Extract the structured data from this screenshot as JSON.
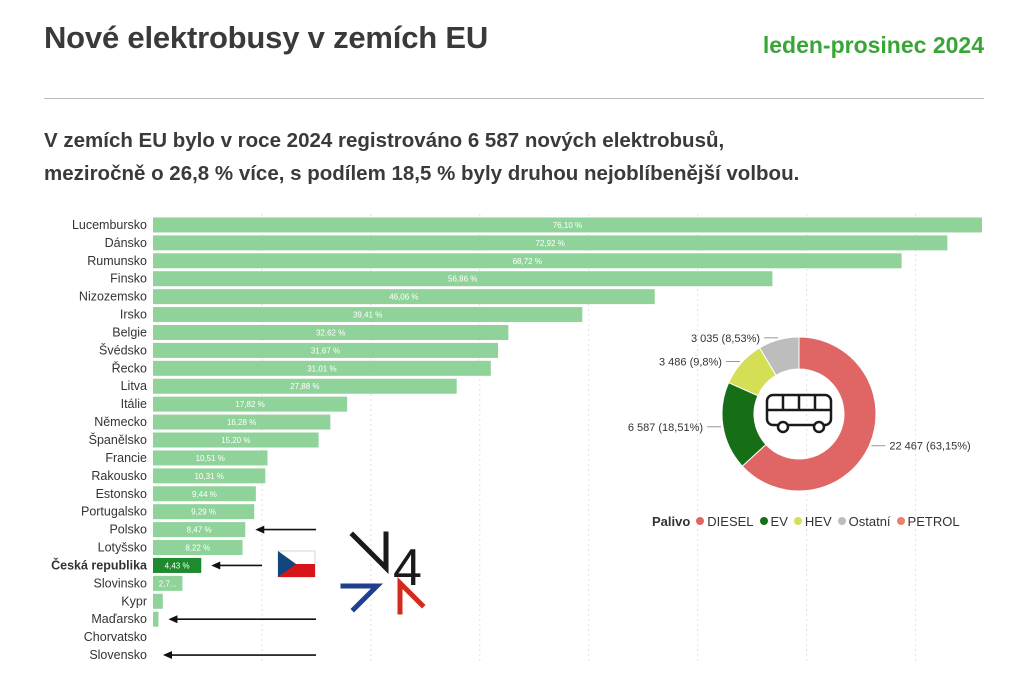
{
  "header": {
    "title": "Nové elektrobusy v zemích EU",
    "period": "leden-prosinec 2024",
    "subtitle_line1": "V zemích EU bylo v roce 2024 registrováno 6 587 nových elektrobusů,",
    "subtitle_line2": "meziročně o 26,8 % více, s podílem 18,5 % byly druhou nejoblíbenější volbou."
  },
  "chart_data": [
    {
      "type": "bar",
      "orientation": "horizontal",
      "title": "",
      "xlabel": "",
      "ylabel": "",
      "xlim": [
        0,
        80
      ],
      "grid": true,
      "bar_color": "#8fd39a",
      "highlight_color": "#1e8a2e",
      "categories": [
        "Lucembursko",
        "Dánsko",
        "Rumunsko",
        "Finsko",
        "Nizozemsko",
        "Irsko",
        "Belgie",
        "Švédsko",
        "Řecko",
        "Litva",
        "Itálie",
        "Německo",
        "Španělsko",
        "Francie",
        "Rakousko",
        "Estonsko",
        "Portugalsko",
        "Polsko",
        "Lotyšsko",
        "Česká republika",
        "Slovinsko",
        "Kypr",
        "Maďarsko",
        "Chorvatsko",
        "Slovensko"
      ],
      "values": [
        76.1,
        72.92,
        68.72,
        56.86,
        46.06,
        39.41,
        32.62,
        31.67,
        31.01,
        27.88,
        17.82,
        16.28,
        15.2,
        10.51,
        10.31,
        9.44,
        9.29,
        8.47,
        8.22,
        4.43,
        2.7,
        0.9,
        0.5,
        0,
        0
      ],
      "labels": [
        "76,10 %",
        "72,92 %",
        "68,72 %",
        "56,86 %",
        "46,06 %",
        "39,41 %",
        "32,62 %",
        "31,67 %",
        "31,01 %",
        "27,88 %",
        "17,82 %",
        "16,28 %",
        "15,20 %",
        "10,51 %",
        "10,31 %",
        "9,44 %",
        "9,29 %",
        "8,47 %",
        "8,22 %",
        "4,43 %",
        "2,7...",
        "",
        "",
        " ",
        ""
      ],
      "highlight": "Česká republika",
      "arrow_markers": [
        "Polsko",
        "Česká republika",
        "Maďarsko",
        "Slovensko"
      ]
    },
    {
      "type": "pie",
      "style": "donut",
      "legend_title": "Palivo",
      "slices": [
        {
          "name": "DIESEL",
          "value": 22467,
          "label": "22 467 (63,15%)",
          "color": "#e06666"
        },
        {
          "name": "EV",
          "value": 6587,
          "label": "6 587 (18,51%)",
          "color": "#166e16"
        },
        {
          "name": "HEV",
          "value": 3486,
          "label": "3 486 (9,8%)",
          "color": "#d4df55"
        },
        {
          "name": "Ostatní",
          "value": 3035,
          "label": "3 035 (8,53%)",
          "color": "#bdbdbd"
        },
        {
          "name": "PETROL",
          "value": 0,
          "label": "",
          "color": "#e8806c"
        }
      ],
      "center_icon": "bus-icon"
    }
  ],
  "v4_logo": {
    "icon": "v4-logo-icon",
    "text": "4",
    "colors": {
      "blue": "#1f3f8f",
      "red": "#d42a1e",
      "black": "#1a1a1a"
    }
  },
  "flag": {
    "icon": "czech-flag-icon",
    "colors": {
      "white": "#ffffff",
      "red": "#d7141a",
      "blue": "#11457e"
    }
  }
}
